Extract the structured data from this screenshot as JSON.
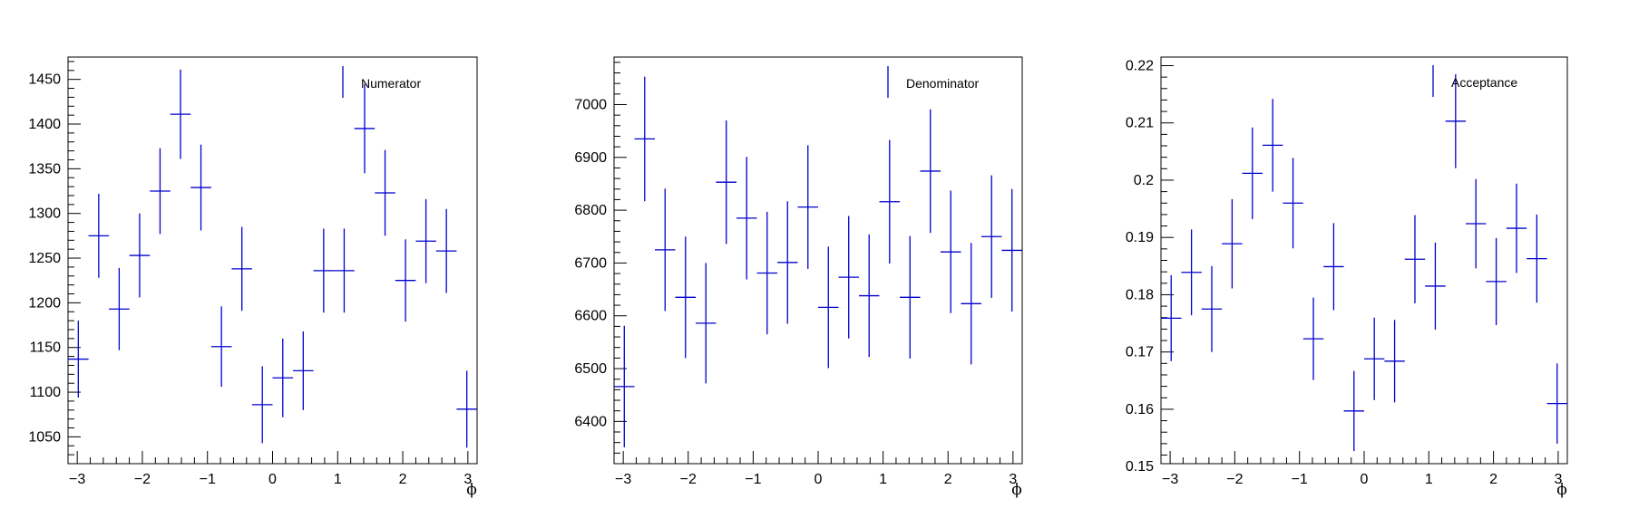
{
  "chart_data": [
    {
      "type": "scatter",
      "style": "error-bars",
      "xlabel": "ϕ",
      "ylabel": "",
      "legend": "Numerator",
      "legend_position": "top-right",
      "color": "#0000cc",
      "xlim": [
        -3.14159,
        3.14159
      ],
      "ylim": [
        1020,
        1475
      ],
      "xticks": [
        -3,
        -2,
        -1,
        0,
        1,
        2,
        3
      ],
      "yticks": [
        1050,
        1100,
        1150,
        1200,
        1250,
        1300,
        1350,
        1400,
        1450
      ],
      "bin_width": 0.31416,
      "x": [
        -2.984,
        -2.67,
        -2.356,
        -2.042,
        -1.728,
        -1.414,
        -1.1,
        -0.785,
        -0.471,
        -0.157,
        0.157,
        0.471,
        0.785,
        1.1,
        1.414,
        1.728,
        2.042,
        2.356,
        2.67,
        2.984
      ],
      "y": [
        1137,
        1275,
        1193,
        1253,
        1325,
        1411,
        1329,
        1151,
        1238,
        1086,
        1116,
        1124,
        1236,
        1236,
        1395,
        1323,
        1225,
        1269,
        1258,
        1081
      ],
      "yerr": [
        43,
        47,
        46,
        47,
        48,
        50,
        48,
        45,
        47,
        43,
        44,
        44,
        47,
        47,
        50,
        48,
        46,
        47,
        47,
        43
      ]
    },
    {
      "type": "scatter",
      "style": "error-bars",
      "xlabel": "ϕ",
      "ylabel": "",
      "legend": "Denominator",
      "legend_position": "top-right",
      "color": "#0000cc",
      "xlim": [
        -3.14159,
        3.14159
      ],
      "ylim": [
        6320,
        7090
      ],
      "xticks": [
        -3,
        -2,
        -1,
        0,
        1,
        2,
        3
      ],
      "yticks": [
        6400,
        6500,
        6600,
        6700,
        6800,
        6900,
        7000
      ],
      "bin_width": 0.31416,
      "x": [
        -2.984,
        -2.67,
        -2.356,
        -2.042,
        -1.728,
        -1.414,
        -1.1,
        -0.785,
        -0.471,
        -0.157,
        0.157,
        0.471,
        0.785,
        1.1,
        1.414,
        1.728,
        2.042,
        2.356,
        2.67,
        2.984
      ],
      "y": [
        6466,
        6935,
        6725,
        6635,
        6586,
        6853,
        6785,
        6681,
        6701,
        6806,
        6616,
        6673,
        6638,
        6816,
        6635,
        6874,
        6721,
        6623,
        6750,
        6724
      ],
      "yerr": [
        115,
        118,
        116,
        115,
        114,
        117,
        116,
        116,
        116,
        117,
        115,
        116,
        116,
        117,
        116,
        117,
        116,
        115,
        116,
        116
      ]
    },
    {
      "type": "scatter",
      "style": "error-bars",
      "xlabel": "ϕ",
      "ylabel": "",
      "legend": "Acceptance",
      "legend_position": "top-right",
      "color": "#0000cc",
      "xlim": [
        -3.14159,
        3.14159
      ],
      "ylim": [
        0.1505,
        0.2215
      ],
      "xticks": [
        -3,
        -2,
        -1,
        0,
        1,
        2,
        3
      ],
      "yticks": [
        0.15,
        0.16,
        0.17,
        0.18,
        0.19,
        0.2,
        0.21,
        0.22
      ],
      "yticklabels": [
        "0.15",
        "0.16",
        "0.17",
        "0.18",
        "0.19",
        "0.2",
        "0.21",
        "0.22"
      ],
      "bin_width": 0.31416,
      "x": [
        -2.984,
        -2.67,
        -2.356,
        -2.042,
        -1.728,
        -1.414,
        -1.1,
        -0.785,
        -0.471,
        -0.157,
        0.157,
        0.471,
        0.785,
        1.1,
        1.414,
        1.728,
        2.042,
        2.356,
        2.67,
        2.984
      ],
      "y": [
        0.1759,
        0.1839,
        0.1775,
        0.1889,
        0.2012,
        0.2061,
        0.196,
        0.1723,
        0.1849,
        0.1597,
        0.1688,
        0.1684,
        0.1862,
        0.1815,
        0.2103,
        0.1924,
        0.1823,
        0.1916,
        0.1863,
        0.161
      ],
      "yerr": [
        0.0075,
        0.0075,
        0.0075,
        0.0078,
        0.008,
        0.0081,
        0.0079,
        0.0072,
        0.0076,
        0.007,
        0.0072,
        0.0072,
        0.0077,
        0.0076,
        0.0082,
        0.0078,
        0.0076,
        0.0078,
        0.0077,
        0.007
      ]
    }
  ]
}
